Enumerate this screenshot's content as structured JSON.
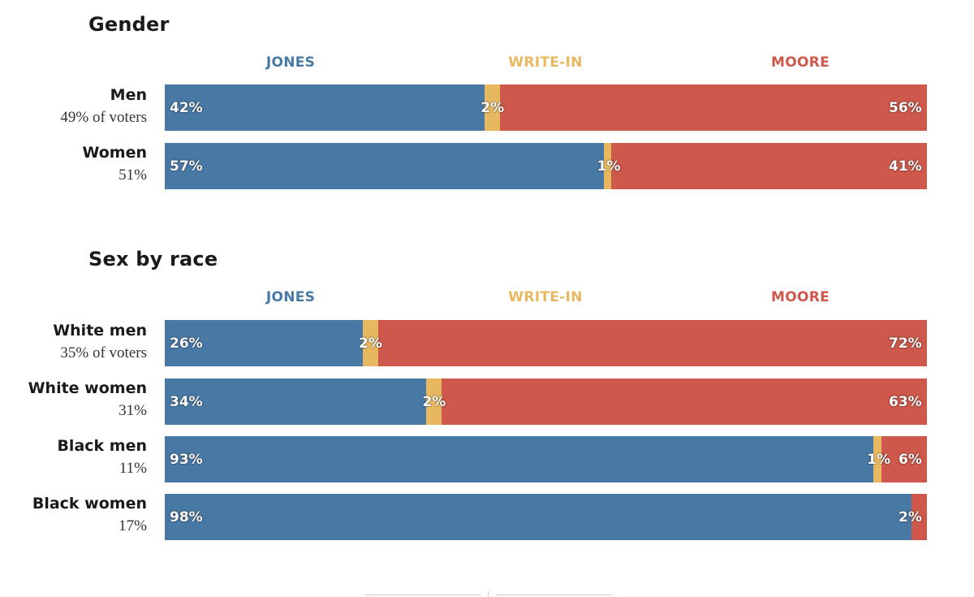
{
  "colors": {
    "jones": "#4878a4",
    "writein": "#e8b860",
    "moore": "#cd584b"
  },
  "chart_data": [
    {
      "type": "bar",
      "stacked": true,
      "orientation": "horizontal",
      "title": "Gender",
      "legend": [
        "JONES",
        "WRITE-IN",
        "MOORE"
      ],
      "categories": [
        "Men",
        "Women"
      ],
      "category_shares": [
        "49% of voters",
        "51%"
      ],
      "series": [
        {
          "name": "JONES",
          "values": [
            42,
            57
          ],
          "labels": [
            "42%",
            "57%"
          ]
        },
        {
          "name": "WRITE-IN",
          "values": [
            2,
            1
          ],
          "labels": [
            "2%",
            "1%"
          ]
        },
        {
          "name": "MOORE",
          "values": [
            56,
            41
          ],
          "labels": [
            "56%",
            "41%"
          ]
        }
      ]
    },
    {
      "type": "bar",
      "stacked": true,
      "orientation": "horizontal",
      "title": "Sex by race",
      "legend": [
        "JONES",
        "WRITE-IN",
        "MOORE"
      ],
      "categories": [
        "White men",
        "White women",
        "Black men",
        "Black women"
      ],
      "category_shares": [
        "35% of voters",
        "31%",
        "11%",
        "17%"
      ],
      "series": [
        {
          "name": "JONES",
          "values": [
            26,
            34,
            93,
            98
          ],
          "labels": [
            "26%",
            "34%",
            "93%",
            "98%"
          ]
        },
        {
          "name": "WRITE-IN",
          "values": [
            2,
            2,
            1,
            0
          ],
          "labels": [
            "2%",
            "2%",
            "1%",
            ""
          ]
        },
        {
          "name": "MOORE",
          "values": [
            72,
            63,
            6,
            2
          ],
          "labels": [
            "72%",
            "63%",
            "6%",
            "2%"
          ]
        }
      ]
    }
  ]
}
